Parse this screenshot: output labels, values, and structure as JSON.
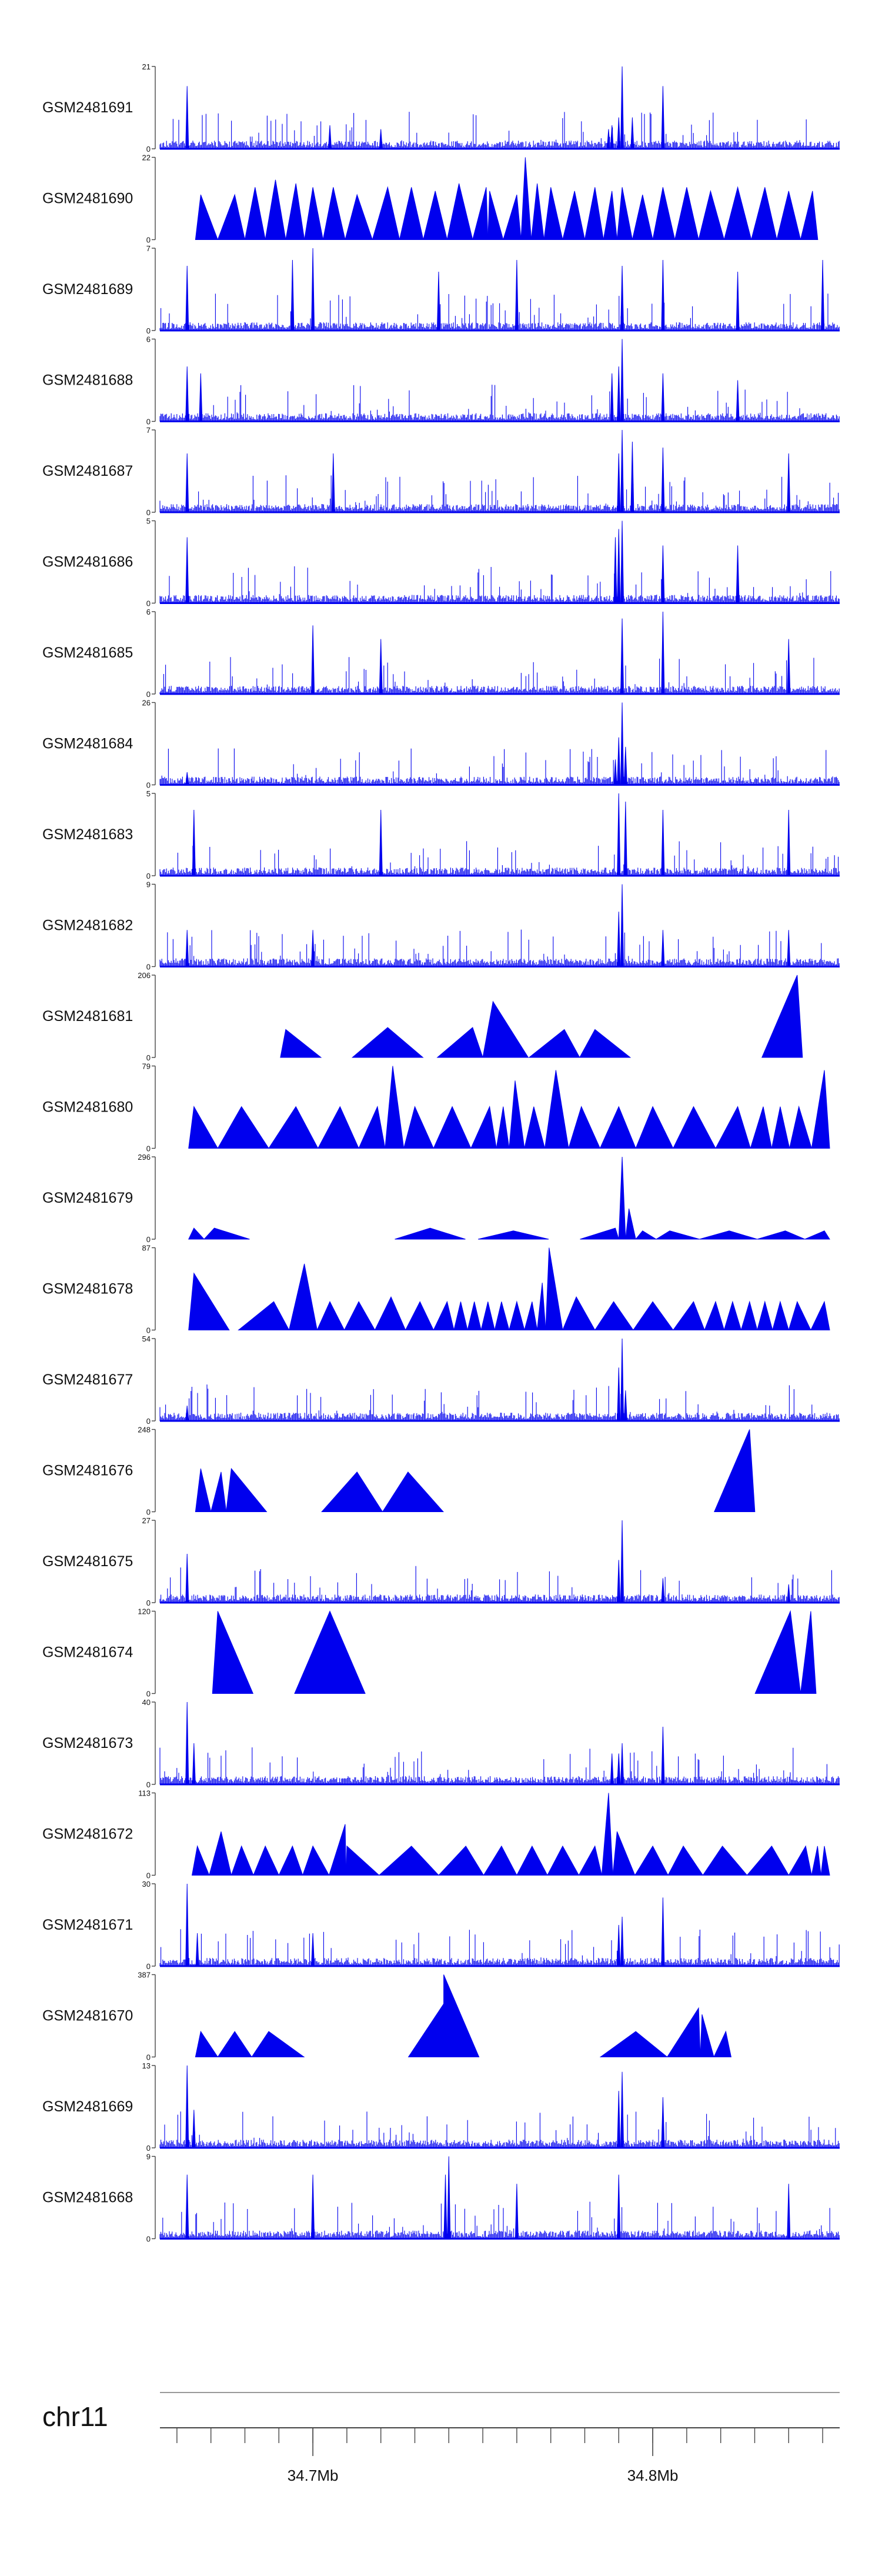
{
  "colors": {
    "signal": "#0000ee",
    "axis": "#444444",
    "chrom_line": "#999999"
  },
  "chart_data": {
    "type": "area",
    "title": "",
    "xlabel": "",
    "ylabel": "",
    "grid": false,
    "legend": "none",
    "genome_axis": {
      "chromosome": "chr11",
      "xlim": [
        34.655,
        34.855
      ],
      "ticks": [
        {
          "value": 34.7,
          "label": "34.7Mb"
        },
        {
          "value": 34.8,
          "label": "34.8Mb"
        }
      ]
    },
    "tracks": [
      {
        "name": "GSM2481691",
        "ylim": [
          0,
          21
        ],
        "ymax_label": "21",
        "ymin_label": "0",
        "style": "dense",
        "peaks": [
          [
            34.663,
            16
          ],
          [
            34.788,
            6
          ],
          [
            34.787,
            5
          ],
          [
            34.791,
            21
          ],
          [
            34.794,
            8
          ],
          [
            34.79,
            8
          ],
          [
            34.803,
            16
          ],
          [
            34.705,
            6
          ],
          [
            34.72,
            5
          ]
        ]
      },
      {
        "name": "GSM2481690",
        "ylim": [
          0,
          22
        ],
        "ymax_label": "22",
        "ymin_label": "0",
        "style": "sparse",
        "peaks": [
          [
            34.667,
            12
          ],
          [
            34.677,
            12
          ],
          [
            34.683,
            14
          ],
          [
            34.689,
            16
          ],
          [
            34.695,
            15
          ],
          [
            34.7,
            14
          ],
          [
            34.706,
            14
          ],
          [
            34.713,
            12
          ],
          [
            34.722,
            14
          ],
          [
            34.729,
            14
          ],
          [
            34.736,
            13
          ],
          [
            34.743,
            15
          ],
          [
            34.751,
            14
          ],
          [
            34.752,
            13
          ],
          [
            34.76,
            12
          ],
          [
            34.766,
            15
          ],
          [
            34.7625,
            22
          ],
          [
            34.77,
            14
          ],
          [
            34.777,
            13
          ],
          [
            34.783,
            14
          ],
          [
            34.788,
            13
          ],
          [
            34.791,
            14
          ],
          [
            34.797,
            12
          ],
          [
            34.803,
            14
          ],
          [
            34.81,
            14
          ],
          [
            34.817,
            13
          ],
          [
            34.825,
            14
          ],
          [
            34.833,
            14
          ],
          [
            34.84,
            13
          ],
          [
            34.847,
            13
          ]
        ]
      },
      {
        "name": "GSM2481689",
        "ylim": [
          0,
          7
        ],
        "ymax_label": "7",
        "ymin_label": "0",
        "style": "dense",
        "peaks": [
          [
            34.663,
            5.5
          ],
          [
            34.694,
            6
          ],
          [
            34.7,
            7
          ],
          [
            34.737,
            5
          ],
          [
            34.76,
            6
          ],
          [
            34.791,
            5.5
          ],
          [
            34.803,
            6
          ],
          [
            34.825,
            5
          ],
          [
            34.85,
            6
          ]
        ]
      },
      {
        "name": "GSM2481688",
        "ylim": [
          0,
          6
        ],
        "ymax_label": "6",
        "ymin_label": "0",
        "style": "dense",
        "peaks": [
          [
            34.663,
            4
          ],
          [
            34.667,
            3.5
          ],
          [
            34.791,
            6
          ],
          [
            34.79,
            4
          ],
          [
            34.788,
            3.5
          ],
          [
            34.803,
            3.5
          ],
          [
            34.825,
            3
          ]
        ]
      },
      {
        "name": "GSM2481687",
        "ylim": [
          0,
          7
        ],
        "ymax_label": "7",
        "ymin_label": "0",
        "style": "dense",
        "peaks": [
          [
            34.663,
            5
          ],
          [
            34.706,
            5
          ],
          [
            34.791,
            7
          ],
          [
            34.79,
            5
          ],
          [
            34.794,
            6
          ],
          [
            34.803,
            5.5
          ],
          [
            34.84,
            5
          ]
        ]
      },
      {
        "name": "GSM2481686",
        "ylim": [
          0,
          5
        ],
        "ymax_label": "5",
        "ymin_label": "0",
        "style": "dense",
        "peaks": [
          [
            34.663,
            4
          ],
          [
            34.791,
            5
          ],
          [
            34.79,
            4.5
          ],
          [
            34.789,
            4
          ],
          [
            34.803,
            3.5
          ],
          [
            34.825,
            3.5
          ]
        ]
      },
      {
        "name": "GSM2481685",
        "ylim": [
          0,
          6
        ],
        "ymax_label": "6",
        "ymin_label": "0",
        "style": "dense",
        "peaks": [
          [
            34.7,
            5
          ],
          [
            34.72,
            4
          ],
          [
            34.791,
            5.5
          ],
          [
            34.803,
            6
          ],
          [
            34.84,
            4
          ]
        ]
      },
      {
        "name": "GSM2481684",
        "ylim": [
          0,
          26
        ],
        "ymax_label": "26",
        "ymin_label": "0",
        "style": "dense",
        "peaks": [
          [
            34.663,
            4
          ],
          [
            34.79,
            15
          ],
          [
            34.791,
            26
          ],
          [
            34.792,
            12
          ],
          [
            34.789,
            8
          ]
        ]
      },
      {
        "name": "GSM2481683",
        "ylim": [
          0,
          5
        ],
        "ymax_label": "5",
        "ymin_label": "0",
        "style": "dense",
        "peaks": [
          [
            34.665,
            4
          ],
          [
            34.72,
            4
          ],
          [
            34.79,
            5
          ],
          [
            34.792,
            4.5
          ],
          [
            34.803,
            4
          ],
          [
            34.84,
            4
          ]
        ]
      },
      {
        "name": "GSM2481682",
        "ylim": [
          0,
          9
        ],
        "ymax_label": "9",
        "ymin_label": "0",
        "style": "dense",
        "peaks": [
          [
            34.663,
            4
          ],
          [
            34.7,
            4
          ],
          [
            34.791,
            9
          ],
          [
            34.79,
            6
          ],
          [
            34.803,
            4
          ],
          [
            34.84,
            4
          ]
        ]
      },
      {
        "name": "GSM2481681",
        "ylim": [
          0,
          206
        ],
        "ymax_label": "206",
        "ymin_label": "0",
        "style": "sparse",
        "peaks": [
          [
            34.692,
            70
          ],
          [
            34.722,
            75
          ],
          [
            34.747,
            75
          ],
          [
            34.753,
            140
          ],
          [
            34.774,
            70
          ],
          [
            34.783,
            70
          ],
          [
            34.8425,
            206
          ]
        ]
      },
      {
        "name": "GSM2481680",
        "ylim": [
          0,
          79
        ],
        "ymax_label": "79",
        "ymin_label": "0",
        "style": "sparse",
        "peaks": [
          [
            34.665,
            40
          ],
          [
            34.679,
            40
          ],
          [
            34.695,
            40
          ],
          [
            34.708,
            40
          ],
          [
            34.719,
            40
          ],
          [
            34.7235,
            79
          ],
          [
            34.73,
            40
          ],
          [
            34.741,
            40
          ],
          [
            34.752,
            40
          ],
          [
            34.756,
            40
          ],
          [
            34.7595,
            65
          ],
          [
            34.765,
            40
          ],
          [
            34.7715,
            75
          ],
          [
            34.779,
            40
          ],
          [
            34.79,
            40
          ],
          [
            34.8,
            40
          ],
          [
            34.812,
            40
          ],
          [
            34.825,
            40
          ],
          [
            34.8325,
            40
          ],
          [
            34.8375,
            40
          ],
          [
            34.843,
            40
          ],
          [
            34.8505,
            75
          ]
        ]
      },
      {
        "name": "GSM2481679",
        "ylim": [
          0,
          296
        ],
        "ymax_label": "296",
        "ymin_label": "0",
        "style": "sparse",
        "peaks": [
          [
            34.665,
            40
          ],
          [
            34.671,
            40
          ],
          [
            34.7345,
            40
          ],
          [
            34.759,
            30
          ],
          [
            34.789,
            40
          ],
          [
            34.791,
            296
          ],
          [
            34.793,
            110
          ],
          [
            34.797,
            30
          ],
          [
            34.805,
            30
          ],
          [
            34.8225,
            30
          ],
          [
            34.839,
            30
          ],
          [
            34.8505,
            30
          ]
        ]
      },
      {
        "name": "GSM2481678",
        "ylim": [
          0,
          87
        ],
        "ymax_label": "87",
        "ymin_label": "0",
        "style": "sparse",
        "peaks": [
          [
            34.665,
            60
          ],
          [
            34.6885,
            30
          ],
          [
            34.6975,
            70
          ],
          [
            34.705,
            30
          ],
          [
            34.7135,
            30
          ],
          [
            34.723,
            35
          ],
          [
            34.7315,
            30
          ],
          [
            34.7395,
            30
          ],
          [
            34.7435,
            30
          ],
          [
            34.7475,
            30
          ],
          [
            34.7515,
            30
          ],
          [
            34.7555,
            30
          ],
          [
            34.76,
            30
          ],
          [
            34.7645,
            30
          ],
          [
            34.7675,
            50
          ],
          [
            34.7695,
            87
          ],
          [
            34.7775,
            35
          ],
          [
            34.7885,
            30
          ],
          [
            34.8,
            30
          ],
          [
            34.812,
            30
          ],
          [
            34.8185,
            30
          ],
          [
            34.8235,
            30
          ],
          [
            34.8285,
            30
          ],
          [
            34.833,
            30
          ],
          [
            34.8375,
            30
          ],
          [
            34.8425,
            30
          ],
          [
            34.8505,
            30
          ]
        ]
      },
      {
        "name": "GSM2481677",
        "ylim": [
          0,
          54
        ],
        "ymax_label": "54",
        "ymin_label": "0",
        "style": "dense",
        "peaks": [
          [
            34.663,
            10
          ],
          [
            34.79,
            35
          ],
          [
            34.791,
            54
          ],
          [
            34.792,
            20
          ]
        ]
      },
      {
        "name": "GSM2481676",
        "ylim": [
          0,
          248
        ],
        "ymax_label": "248",
        "ymin_label": "0",
        "style": "sparse",
        "peaks": [
          [
            34.667,
            130
          ],
          [
            34.673,
            120
          ],
          [
            34.676,
            130
          ],
          [
            34.713,
            120
          ],
          [
            34.728,
            120
          ],
          [
            34.8285,
            248
          ]
        ]
      },
      {
        "name": "GSM2481675",
        "ylim": [
          0,
          27
        ],
        "ymax_label": "27",
        "ymin_label": "0",
        "style": "dense",
        "peaks": [
          [
            34.663,
            16
          ],
          [
            34.791,
            27
          ],
          [
            34.79,
            14
          ],
          [
            34.803,
            8
          ],
          [
            34.84,
            6
          ]
        ]
      },
      {
        "name": "GSM2481674",
        "ylim": [
          0,
          120
        ],
        "ymax_label": "120",
        "ymin_label": "0",
        "style": "sparse",
        "peaks": [
          [
            34.672,
            120
          ],
          [
            34.705,
            120
          ],
          [
            34.8405,
            120
          ],
          [
            34.8465,
            120
          ]
        ]
      },
      {
        "name": "GSM2481673",
        "ylim": [
          0,
          40
        ],
        "ymax_label": "40",
        "ymin_label": "0",
        "style": "dense",
        "peaks": [
          [
            34.663,
            40
          ],
          [
            34.665,
            20
          ],
          [
            34.788,
            15
          ],
          [
            34.791,
            20
          ],
          [
            34.79,
            15
          ],
          [
            34.803,
            28
          ]
        ]
      },
      {
        "name": "GSM2481672",
        "ylim": [
          0,
          113
        ],
        "ymax_label": "113",
        "ymin_label": "0",
        "style": "sparse",
        "peaks": [
          [
            34.666,
            40
          ],
          [
            34.673,
            60
          ],
          [
            34.679,
            40
          ],
          [
            34.686,
            40
          ],
          [
            34.694,
            40
          ],
          [
            34.7,
            40
          ],
          [
            34.7095,
            70
          ],
          [
            34.71,
            40
          ],
          [
            34.729,
            40
          ],
          [
            34.745,
            40
          ],
          [
            34.7555,
            40
          ],
          [
            34.7645,
            40
          ],
          [
            34.7735,
            40
          ],
          [
            34.783,
            40
          ],
          [
            34.787,
            113
          ],
          [
            34.7895,
            60
          ],
          [
            34.8,
            40
          ],
          [
            34.809,
            40
          ],
          [
            34.8205,
            40
          ],
          [
            34.835,
            40
          ],
          [
            34.845,
            40
          ],
          [
            34.8485,
            40
          ],
          [
            34.8505,
            40
          ]
        ]
      },
      {
        "name": "GSM2481671",
        "ylim": [
          0,
          30
        ],
        "ymax_label": "30",
        "ymin_label": "0",
        "style": "dense",
        "peaks": [
          [
            34.663,
            30
          ],
          [
            34.666,
            12
          ],
          [
            34.7,
            12
          ],
          [
            34.79,
            15
          ],
          [
            34.791,
            18
          ],
          [
            34.803,
            25
          ]
        ]
      },
      {
        "name": "GSM2481670",
        "ylim": [
          0,
          387
        ],
        "ymax_label": "387",
        "ymin_label": "0",
        "style": "sparse",
        "peaks": [
          [
            34.667,
            120
          ],
          [
            34.677,
            120
          ],
          [
            34.687,
            120
          ],
          [
            34.7385,
            250
          ],
          [
            34.7385,
            387
          ],
          [
            34.795,
            120
          ],
          [
            34.8135,
            230
          ],
          [
            34.8145,
            200
          ],
          [
            34.8215,
            120
          ]
        ]
      },
      {
        "name": "GSM2481669",
        "ylim": [
          0,
          13
        ],
        "ymax_label": "13",
        "ymin_label": "0",
        "style": "dense",
        "peaks": [
          [
            34.663,
            13
          ],
          [
            34.665,
            6
          ],
          [
            34.791,
            12
          ],
          [
            34.79,
            9
          ],
          [
            34.803,
            8
          ]
        ]
      },
      {
        "name": "GSM2481668",
        "ylim": [
          0,
          9
        ],
        "ymax_label": "9",
        "ymin_label": "0",
        "style": "dense",
        "peaks": [
          [
            34.663,
            7
          ],
          [
            34.7,
            7
          ],
          [
            34.739,
            7
          ],
          [
            34.74,
            9
          ],
          [
            34.76,
            6
          ],
          [
            34.79,
            7
          ],
          [
            34.84,
            6
          ]
        ]
      }
    ]
  }
}
